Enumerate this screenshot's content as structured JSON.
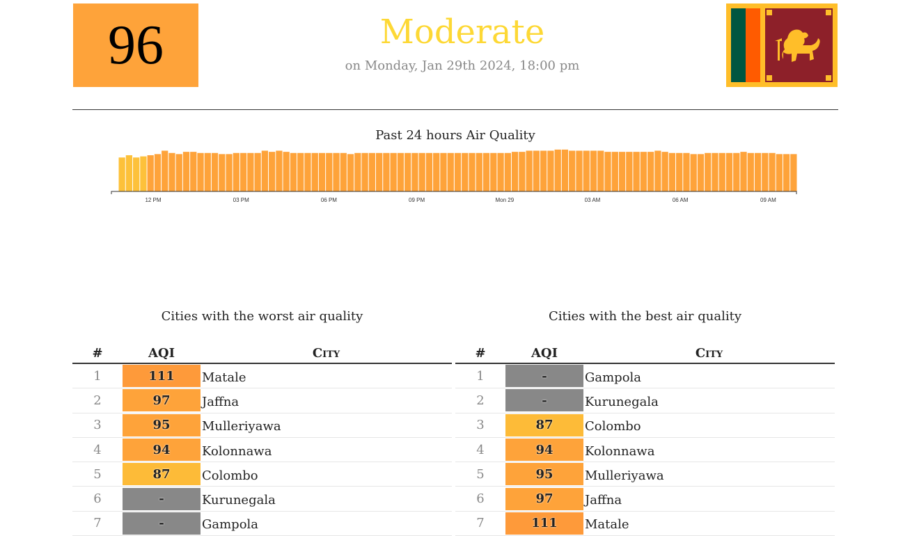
{
  "header": {
    "aqi_value": "96",
    "status": "Moderate",
    "timestamp": "on Monday, Jan 29th 2024, 18:00 pm",
    "flag_icon": "sri-lanka-flag-icon",
    "aqi_color": "#fea33a",
    "status_color": "#fdd835"
  },
  "chart_data": {
    "type": "bar",
    "title": "Past 24 hours Air Quality",
    "tick_labels": [
      "12 PM",
      "03 PM",
      "06 PM",
      "09 PM",
      "Mon 29",
      "03 AM",
      "06 AM",
      "09 AM"
    ],
    "values": [
      80,
      82,
      80,
      81,
      82,
      83,
      86,
      84,
      83,
      85,
      85,
      84,
      84,
      84,
      83,
      83,
      84,
      84,
      84,
      84,
      86,
      85,
      86,
      85,
      84,
      84,
      84,
      84,
      84,
      84,
      84,
      84,
      83,
      84,
      84,
      84,
      84,
      84,
      84,
      84,
      84,
      84,
      84,
      84,
      84,
      84,
      84,
      84,
      84,
      84,
      84,
      84,
      84,
      84,
      84,
      85,
      85,
      86,
      86,
      86,
      86,
      87,
      87,
      86,
      86,
      86,
      86,
      86,
      85,
      85,
      85,
      85,
      85,
      85,
      85,
      86,
      85,
      84,
      84,
      84,
      83,
      83,
      84,
      84,
      84,
      84,
      84,
      85,
      84,
      84,
      84,
      84,
      83,
      83,
      83
    ],
    "colors": [
      "#fdc13a",
      "#fea33a"
    ],
    "grid": false,
    "legend": "none"
  },
  "worst": {
    "title": "Cities with the worst air quality",
    "headers": {
      "rank": "#",
      "aqi": "AQI",
      "city": "City"
    },
    "rows": [
      {
        "rank": "1",
        "aqi": "111",
        "city": "Matale",
        "color": "#fe9a3a"
      },
      {
        "rank": "2",
        "aqi": "97",
        "city": "Jaffna",
        "color": "#fea33a"
      },
      {
        "rank": "3",
        "aqi": "95",
        "city": "Mulleriyawa",
        "color": "#fea33a"
      },
      {
        "rank": "4",
        "aqi": "94",
        "city": "Kolonnawa",
        "color": "#fea33a"
      },
      {
        "rank": "5",
        "aqi": "87",
        "city": "Colombo",
        "color": "#fdbb38"
      },
      {
        "rank": "6",
        "aqi": "-",
        "city": "Kurunegala",
        "color": "#888888"
      },
      {
        "rank": "7",
        "aqi": "-",
        "city": "Gampola",
        "color": "#888888"
      }
    ]
  },
  "best": {
    "title": "Cities with the best air quality",
    "headers": {
      "rank": "#",
      "aqi": "AQI",
      "city": "City"
    },
    "rows": [
      {
        "rank": "1",
        "aqi": "-",
        "city": "Gampola",
        "color": "#888888"
      },
      {
        "rank": "2",
        "aqi": "-",
        "city": "Kurunegala",
        "color": "#888888"
      },
      {
        "rank": "3",
        "aqi": "87",
        "city": "Colombo",
        "color": "#fdbb38"
      },
      {
        "rank": "4",
        "aqi": "94",
        "city": "Kolonnawa",
        "color": "#fea33a"
      },
      {
        "rank": "5",
        "aqi": "95",
        "city": "Mulleriyawa",
        "color": "#fea33a"
      },
      {
        "rank": "6",
        "aqi": "97",
        "city": "Jaffna",
        "color": "#fea33a"
      },
      {
        "rank": "7",
        "aqi": "111",
        "city": "Matale",
        "color": "#fe9a3a"
      }
    ]
  }
}
